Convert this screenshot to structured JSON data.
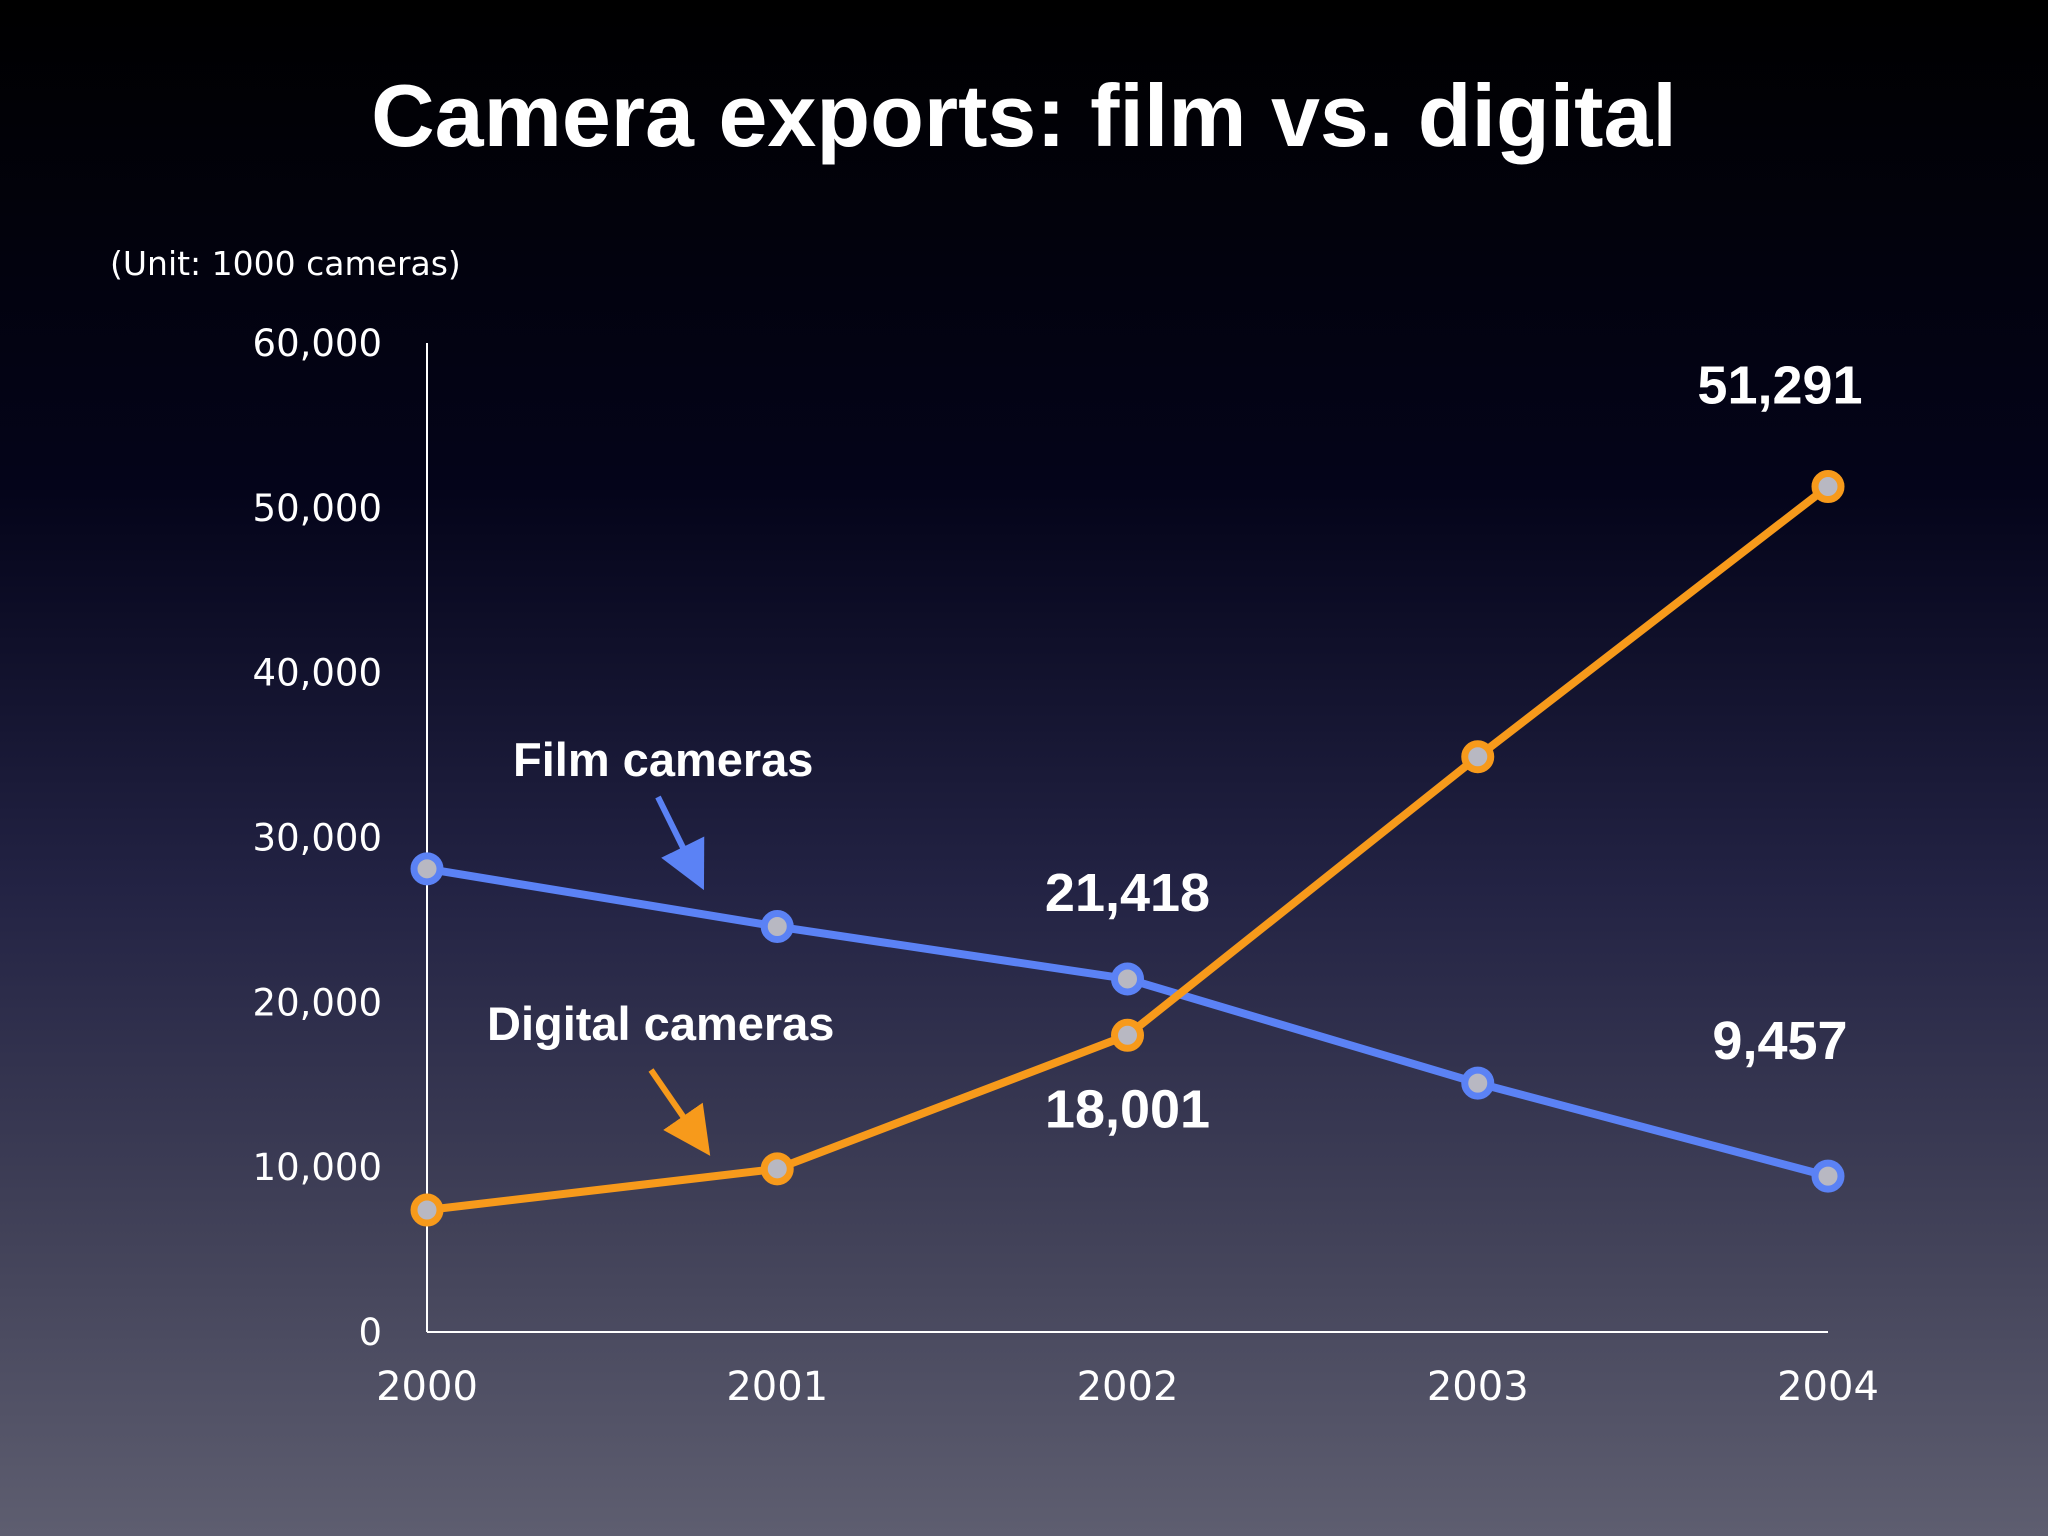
{
  "chart_data": {
    "type": "line",
    "title": "Camera exports: film vs. digital",
    "unit_note": "(Unit: 1000 cameras)",
    "xlabel": "",
    "ylabel": "",
    "x": [
      "2000",
      "2001",
      "2002",
      "2003",
      "2004"
    ],
    "ylim": [
      0,
      60000
    ],
    "yticks": [
      0,
      10000,
      20000,
      30000,
      40000,
      50000,
      60000
    ],
    "ytick_labels": [
      "0",
      "10,000",
      "20,000",
      "30,000",
      "40,000",
      "50,000",
      "60,000"
    ],
    "grid": false,
    "legend": "none",
    "series": [
      {
        "name": "Film cameras",
        "color": "#5b82f5",
        "values": [
          28100,
          24600,
          21418,
          15100,
          9457
        ],
        "data_labels": [
          null,
          null,
          "21,418",
          null,
          "9,457"
        ]
      },
      {
        "name": "Digital cameras",
        "color": "#f79a1b",
        "values": [
          7400,
          9900,
          18001,
          34900,
          51291
        ],
        "data_labels": [
          null,
          null,
          "18,001",
          null,
          "51,291"
        ]
      }
    ],
    "point_fill_color": "#b8b8c2"
  }
}
